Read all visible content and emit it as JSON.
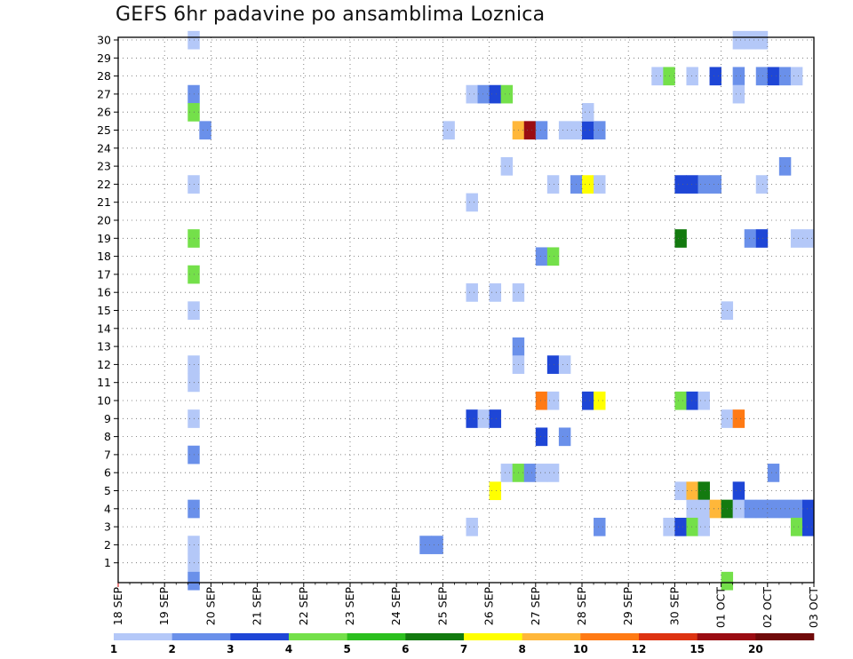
{
  "title": "GEFS 6hr padavine po ansamblima Loznica",
  "chart_data": {
    "type": "heatmap",
    "title": "GEFS 6hr padavine po ansamblima Loznica",
    "x_ticks": [
      "18 SEP",
      "19 SEP",
      "20 SEP",
      "21 SEP",
      "22 SEP",
      "23 SEP",
      "24 SEP",
      "25 SEP",
      "26 SEP",
      "27 SEP",
      "28 SEP",
      "29 SEP",
      "30 SEP",
      "01 OCT",
      "02 OCT",
      "03 OCT"
    ],
    "y_ticks": [
      "1",
      "2",
      "3",
      "4",
      "5",
      "6",
      "7",
      "8",
      "9",
      "10",
      "11",
      "12",
      "13",
      "14",
      "15",
      "16",
      "17",
      "18",
      "19",
      "20",
      "21",
      "22",
      "23",
      "24",
      "25",
      "26",
      "27",
      "28",
      "29",
      "30"
    ],
    "xlim": [
      "18 SEP 00Z",
      "03 OCT 00Z"
    ],
    "ylim": [
      0,
      30
    ],
    "grid": true,
    "x_unit": "6-hour step after 18 SEP 00Z",
    "legend": {
      "position": "bottom",
      "labels": [
        "1",
        "2",
        "3",
        "4",
        "5",
        "6",
        "7",
        "8",
        "10",
        "12",
        "15",
        "20"
      ],
      "colors": [
        "#b4c8f8",
        "#6a90ea",
        "#1e46d6",
        "#74e04a",
        "#2cbf1e",
        "#137a0f",
        "#ffff00",
        "#ffb73a",
        "#ff7a14",
        "#dd3311",
        "#9a0c12",
        "#700a0a"
      ]
    },
    "cells": [
      {
        "x": "19 SEP 12Z",
        "y": 30,
        "c": 0
      },
      {
        "x": "19 SEP 12Z",
        "y": 27,
        "c": 1
      },
      {
        "x": "19 SEP 12Z",
        "y": 26,
        "c": 3
      },
      {
        "x": "19 SEP 18Z",
        "y": 25,
        "c": 1
      },
      {
        "x": "19 SEP 12Z",
        "y": 22,
        "c": 0
      },
      {
        "x": "19 SEP 12Z",
        "y": 19,
        "c": 3
      },
      {
        "x": "19 SEP 12Z",
        "y": 17,
        "c": 3
      },
      {
        "x": "19 SEP 12Z",
        "y": 15,
        "c": 0
      },
      {
        "x": "19 SEP 12Z",
        "y": 12,
        "c": 0
      },
      {
        "x": "19 SEP 12Z",
        "y": 11,
        "c": 0
      },
      {
        "x": "19 SEP 12Z",
        "y": 9,
        "c": 0
      },
      {
        "x": "19 SEP 12Z",
        "y": 7,
        "c": 1
      },
      {
        "x": "19 SEP 12Z",
        "y": 4,
        "c": 1
      },
      {
        "x": "19 SEP 12Z",
        "y": 2,
        "c": 0
      },
      {
        "x": "19 SEP 12Z",
        "y": 1,
        "c": 0
      },
      {
        "x": "19 SEP 12Z",
        "y": 0,
        "c": 1
      },
      {
        "x": "24 SEP 12Z",
        "y": 2,
        "c": 1
      },
      {
        "x": "24 SEP 18Z",
        "y": 2,
        "c": 1
      },
      {
        "x": "25 SEP 00Z",
        "y": 25,
        "c": 0
      },
      {
        "x": "25 SEP 12Z",
        "y": 27,
        "c": 0
      },
      {
        "x": "25 SEP 18Z",
        "y": 27,
        "c": 1
      },
      {
        "x": "26 SEP 00Z",
        "y": 27,
        "c": 2
      },
      {
        "x": "26 SEP 06Z",
        "y": 27,
        "c": 3
      },
      {
        "x": "25 SEP 12Z",
        "y": 21,
        "c": 0
      },
      {
        "x": "25 SEP 12Z",
        "y": 16,
        "c": 0
      },
      {
        "x": "26 SEP 00Z",
        "y": 16,
        "c": 0
      },
      {
        "x": "26 SEP 12Z",
        "y": 16,
        "c": 0
      },
      {
        "x": "25 SEP 12Z",
        "y": 9,
        "c": 2
      },
      {
        "x": "25 SEP 18Z",
        "y": 9,
        "c": 0
      },
      {
        "x": "26 SEP 00Z",
        "y": 9,
        "c": 2
      },
      {
        "x": "25 SEP 12Z",
        "y": 3,
        "c": 0
      },
      {
        "x": "26 SEP 00Z",
        "y": 5,
        "c": 6
      },
      {
        "x": "26 SEP 06Z",
        "y": 23,
        "c": 0
      },
      {
        "x": "26 SEP 06Z",
        "y": 6,
        "c": 0
      },
      {
        "x": "26 SEP 12Z",
        "y": 6,
        "c": 3
      },
      {
        "x": "26 SEP 18Z",
        "y": 6,
        "c": 1
      },
      {
        "x": "27 SEP 00Z",
        "y": 6,
        "c": 0
      },
      {
        "x": "27 SEP 06Z",
        "y": 6,
        "c": 0
      },
      {
        "x": "26 SEP 12Z",
        "y": 13,
        "c": 1
      },
      {
        "x": "26 SEP 12Z",
        "y": 12,
        "c": 0
      },
      {
        "x": "26 SEP 12Z",
        "y": 25,
        "c": 7
      },
      {
        "x": "26 SEP 18Z",
        "y": 25,
        "c": 10
      },
      {
        "x": "27 SEP 00Z",
        "y": 25,
        "c": 1
      },
      {
        "x": "27 SEP 12Z",
        "y": 25,
        "c": 0
      },
      {
        "x": "27 SEP 18Z",
        "y": 25,
        "c": 0
      },
      {
        "x": "28 SEP 00Z",
        "y": 25,
        "c": 2
      },
      {
        "x": "28 SEP 06Z",
        "y": 25,
        "c": 1
      },
      {
        "x": "28 SEP 00Z",
        "y": 26,
        "c": 0
      },
      {
        "x": "27 SEP 06Z",
        "y": 22,
        "c": 0
      },
      {
        "x": "27 SEP 18Z",
        "y": 22,
        "c": 1
      },
      {
        "x": "28 SEP 00Z",
        "y": 22,
        "c": 6
      },
      {
        "x": "28 SEP 06Z",
        "y": 22,
        "c": 0
      },
      {
        "x": "27 SEP 00Z",
        "y": 18,
        "c": 1
      },
      {
        "x": "27 SEP 06Z",
        "y": 18,
        "c": 3
      },
      {
        "x": "27 SEP 06Z",
        "y": 12,
        "c": 2
      },
      {
        "x": "27 SEP 12Z",
        "y": 12,
        "c": 0
      },
      {
        "x": "27 SEP 00Z",
        "y": 10,
        "c": 8
      },
      {
        "x": "27 SEP 06Z",
        "y": 10,
        "c": 0
      },
      {
        "x": "28 SEP 00Z",
        "y": 10,
        "c": 2
      },
      {
        "x": "28 SEP 06Z",
        "y": 10,
        "c": 6
      },
      {
        "x": "27 SEP 00Z",
        "y": 8,
        "c": 2
      },
      {
        "x": "27 SEP 12Z",
        "y": 8,
        "c": 1
      },
      {
        "x": "28 SEP 06Z",
        "y": 3,
        "c": 1
      },
      {
        "x": "29 SEP 12Z",
        "y": 28,
        "c": 0
      },
      {
        "x": "29 SEP 18Z",
        "y": 28,
        "c": 3
      },
      {
        "x": "30 SEP 06Z",
        "y": 28,
        "c": 0
      },
      {
        "x": "30 SEP 18Z",
        "y": 28,
        "c": 2
      },
      {
        "x": "01 OCT 06Z",
        "y": 28,
        "c": 1
      },
      {
        "x": "01 OCT 06Z",
        "y": 27,
        "c": 0
      },
      {
        "x": "01 OCT 18Z",
        "y": 28,
        "c": 1
      },
      {
        "x": "02 OCT 00Z",
        "y": 28,
        "c": 2
      },
      {
        "x": "02 OCT 06Z",
        "y": 28,
        "c": 1
      },
      {
        "x": "02 OCT 12Z",
        "y": 28,
        "c": 0
      },
      {
        "x": "01 OCT 06Z",
        "y": 30,
        "c": 0
      },
      {
        "x": "01 OCT 12Z",
        "y": 30,
        "c": 0
      },
      {
        "x": "01 OCT 18Z",
        "y": 30,
        "c": 0
      },
      {
        "x": "02 OCT 06Z",
        "y": 23,
        "c": 1
      },
      {
        "x": "30 SEP 00Z",
        "y": 22,
        "c": 2
      },
      {
        "x": "30 SEP 06Z",
        "y": 22,
        "c": 2
      },
      {
        "x": "30 SEP 12Z",
        "y": 22,
        "c": 1
      },
      {
        "x": "30 SEP 18Z",
        "y": 22,
        "c": 1
      },
      {
        "x": "01 OCT 18Z",
        "y": 22,
        "c": 0
      },
      {
        "x": "30 SEP 00Z",
        "y": 19,
        "c": 5
      },
      {
        "x": "01 OCT 12Z",
        "y": 19,
        "c": 1
      },
      {
        "x": "01 OCT 18Z",
        "y": 19,
        "c": 2
      },
      {
        "x": "02 OCT 12Z",
        "y": 19,
        "c": 0
      },
      {
        "x": "02 OCT 18Z",
        "y": 19,
        "c": 0
      },
      {
        "x": "01 OCT 00Z",
        "y": 15,
        "c": 0
      },
      {
        "x": "30 SEP 00Z",
        "y": 10,
        "c": 3
      },
      {
        "x": "30 SEP 06Z",
        "y": 10,
        "c": 2
      },
      {
        "x": "30 SEP 12Z",
        "y": 10,
        "c": 0
      },
      {
        "x": "03 OCT 00Z",
        "y": 10,
        "c": 2
      },
      {
        "x": "01 OCT 00Z",
        "y": 9,
        "c": 0
      },
      {
        "x": "01 OCT 06Z",
        "y": 9,
        "c": 8
      },
      {
        "x": "02 OCT 00Z",
        "y": 6,
        "c": 1
      },
      {
        "x": "30 SEP 00Z",
        "y": 5,
        "c": 0
      },
      {
        "x": "30 SEP 06Z",
        "y": 5,
        "c": 7
      },
      {
        "x": "30 SEP 12Z",
        "y": 5,
        "c": 5
      },
      {
        "x": "01 OCT 06Z",
        "y": 5,
        "c": 2
      },
      {
        "x": "30 SEP 06Z",
        "y": 4,
        "c": 0
      },
      {
        "x": "30 SEP 12Z",
        "y": 4,
        "c": 0
      },
      {
        "x": "30 SEP 18Z",
        "y": 4,
        "c": 7
      },
      {
        "x": "01 OCT 00Z",
        "y": 4,
        "c": 5
      },
      {
        "x": "01 OCT 06Z",
        "y": 4,
        "c": 0
      },
      {
        "x": "01 OCT 12Z",
        "y": 4,
        "c": 1
      },
      {
        "x": "01 OCT 18Z",
        "y": 4,
        "c": 1
      },
      {
        "x": "02 OCT 00Z",
        "y": 4,
        "c": 1
      },
      {
        "x": "02 OCT 06Z",
        "y": 4,
        "c": 1
      },
      {
        "x": "02 OCT 12Z",
        "y": 4,
        "c": 1
      },
      {
        "x": "02 OCT 18Z",
        "y": 4,
        "c": 2
      },
      {
        "x": "03 OCT 00Z",
        "y": 4,
        "c": 5
      },
      {
        "x": "29 SEP 18Z",
        "y": 3,
        "c": 0
      },
      {
        "x": "30 SEP 00Z",
        "y": 3,
        "c": 2
      },
      {
        "x": "30 SEP 06Z",
        "y": 3,
        "c": 3
      },
      {
        "x": "30 SEP 12Z",
        "y": 3,
        "c": 0
      },
      {
        "x": "02 OCT 12Z",
        "y": 3,
        "c": 3
      },
      {
        "x": "02 OCT 18Z",
        "y": 3,
        "c": 2
      },
      {
        "x": "01 OCT 00Z",
        "y": 0,
        "c": 3
      }
    ]
  }
}
